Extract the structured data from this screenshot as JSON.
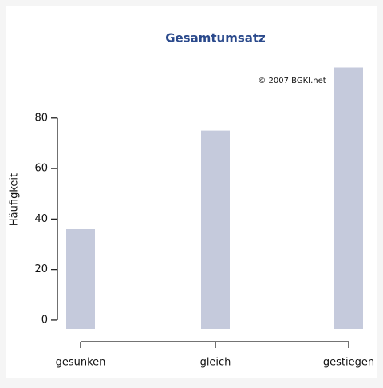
{
  "chart_data": {
    "type": "bar",
    "title": "Gesamtumsatz",
    "annotation": "© 2007 BGKI.net",
    "y_label": "Häufigkeit",
    "categories": [
      "gesunken",
      "gleich",
      "gestiegen"
    ],
    "values": [
      36,
      75,
      100
    ],
    "color": "#c5cadc",
    "ylim": [
      -3.5,
      103
    ],
    "yticks": [
      0,
      20,
      40,
      60,
      80
    ]
  }
}
